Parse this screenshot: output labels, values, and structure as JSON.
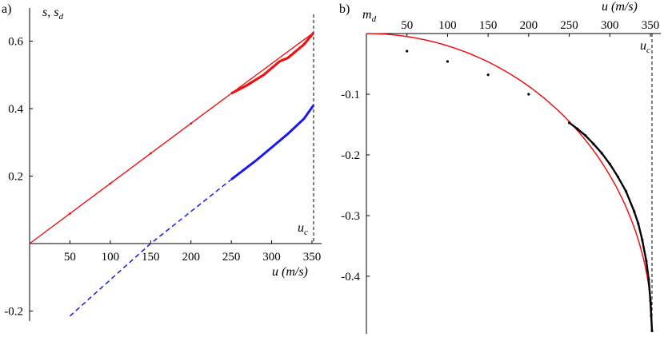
{
  "chart_data": [
    {
      "type": "line",
      "panel_label": "a)",
      "ylabel": "s, s",
      "ylabel_sub": "d",
      "xlabel": "u (m/s)",
      "uc_label": "u",
      "uc_sub": "c",
      "xlim": [
        0,
        355
      ],
      "ylim": [
        -0.22,
        0.63
      ],
      "x_ticks": [
        50,
        100,
        150,
        200,
        250,
        300,
        350
      ],
      "x_tick_labels": [
        "50",
        "100",
        "150",
        "200",
        "250",
        "300",
        "350"
      ],
      "y_ticks": [
        -0.2,
        0.2,
        0.4,
        0.6
      ],
      "y_tick_labels": [
        "-0.2",
        "0.2",
        "0.4",
        "0.6"
      ],
      "uc": 352,
      "series": [
        {
          "color": "#ee1111",
          "style": "solid",
          "x": [
            0,
            250,
            352
          ],
          "y": [
            0,
            0.445,
            0.625
          ]
        },
        {
          "color": "#ee1111",
          "style": "thick-noisy",
          "x": [
            250,
            270,
            290,
            300,
            310,
            320,
            330,
            340,
            352
          ],
          "y": [
            0.445,
            0.47,
            0.5,
            0.52,
            0.54,
            0.55,
            0.57,
            0.59,
            0.625
          ]
        },
        {
          "color": "#1a1aee",
          "style": "dashed",
          "x": [
            50,
            150,
            250
          ],
          "y": [
            -0.215,
            0,
            0.19
          ]
        },
        {
          "color": "#1a1aee",
          "style": "thick",
          "x": [
            250,
            280,
            300,
            320,
            340,
            352
          ],
          "y": [
            0.19,
            0.245,
            0.285,
            0.325,
            0.37,
            0.41
          ]
        }
      ]
    },
    {
      "type": "line",
      "panel_label": "b)",
      "ylabel": "m",
      "ylabel_sub": "d",
      "xlabel": "u (m/s)",
      "uc_label": "u",
      "uc_sub": "c",
      "xlim": [
        0,
        355
      ],
      "ylim": [
        -0.49,
        0
      ],
      "x_ticks": [
        50,
        100,
        150,
        200,
        250,
        300,
        350
      ],
      "x_tick_labels": [
        "50",
        "100",
        "150",
        "200",
        "250",
        "300",
        "350"
      ],
      "y_ticks": [
        -0.1,
        -0.2,
        -0.3,
        -0.4
      ],
      "y_tick_labels": [
        "-0.1",
        "-0.2",
        "-0.3",
        "-0.4"
      ],
      "uc": 352,
      "curve": {
        "color": "#ee1111",
        "uc": 352,
        "depth": 0.49
      },
      "points": [
        {
          "x": 50,
          "y": -0.029
        },
        {
          "x": 100,
          "y": -0.046
        },
        {
          "x": 150,
          "y": -0.068
        },
        {
          "x": 200,
          "y": -0.1
        },
        {
          "x": 250,
          "y": -0.147
        },
        {
          "x": 260,
          "y": -0.157
        },
        {
          "x": 270,
          "y": -0.168
        },
        {
          "x": 280,
          "y": -0.182
        },
        {
          "x": 290,
          "y": -0.197
        },
        {
          "x": 300,
          "y": -0.215
        },
        {
          "x": 310,
          "y": -0.236
        },
        {
          "x": 320,
          "y": -0.26
        },
        {
          "x": 330,
          "y": -0.293
        },
        {
          "x": 335,
          "y": -0.313
        },
        {
          "x": 340,
          "y": -0.34
        },
        {
          "x": 345,
          "y": -0.375
        },
        {
          "x": 348,
          "y": -0.405
        },
        {
          "x": 350,
          "y": -0.44
        },
        {
          "x": 351,
          "y": -0.465
        },
        {
          "x": 352,
          "y": -0.49
        }
      ]
    }
  ]
}
